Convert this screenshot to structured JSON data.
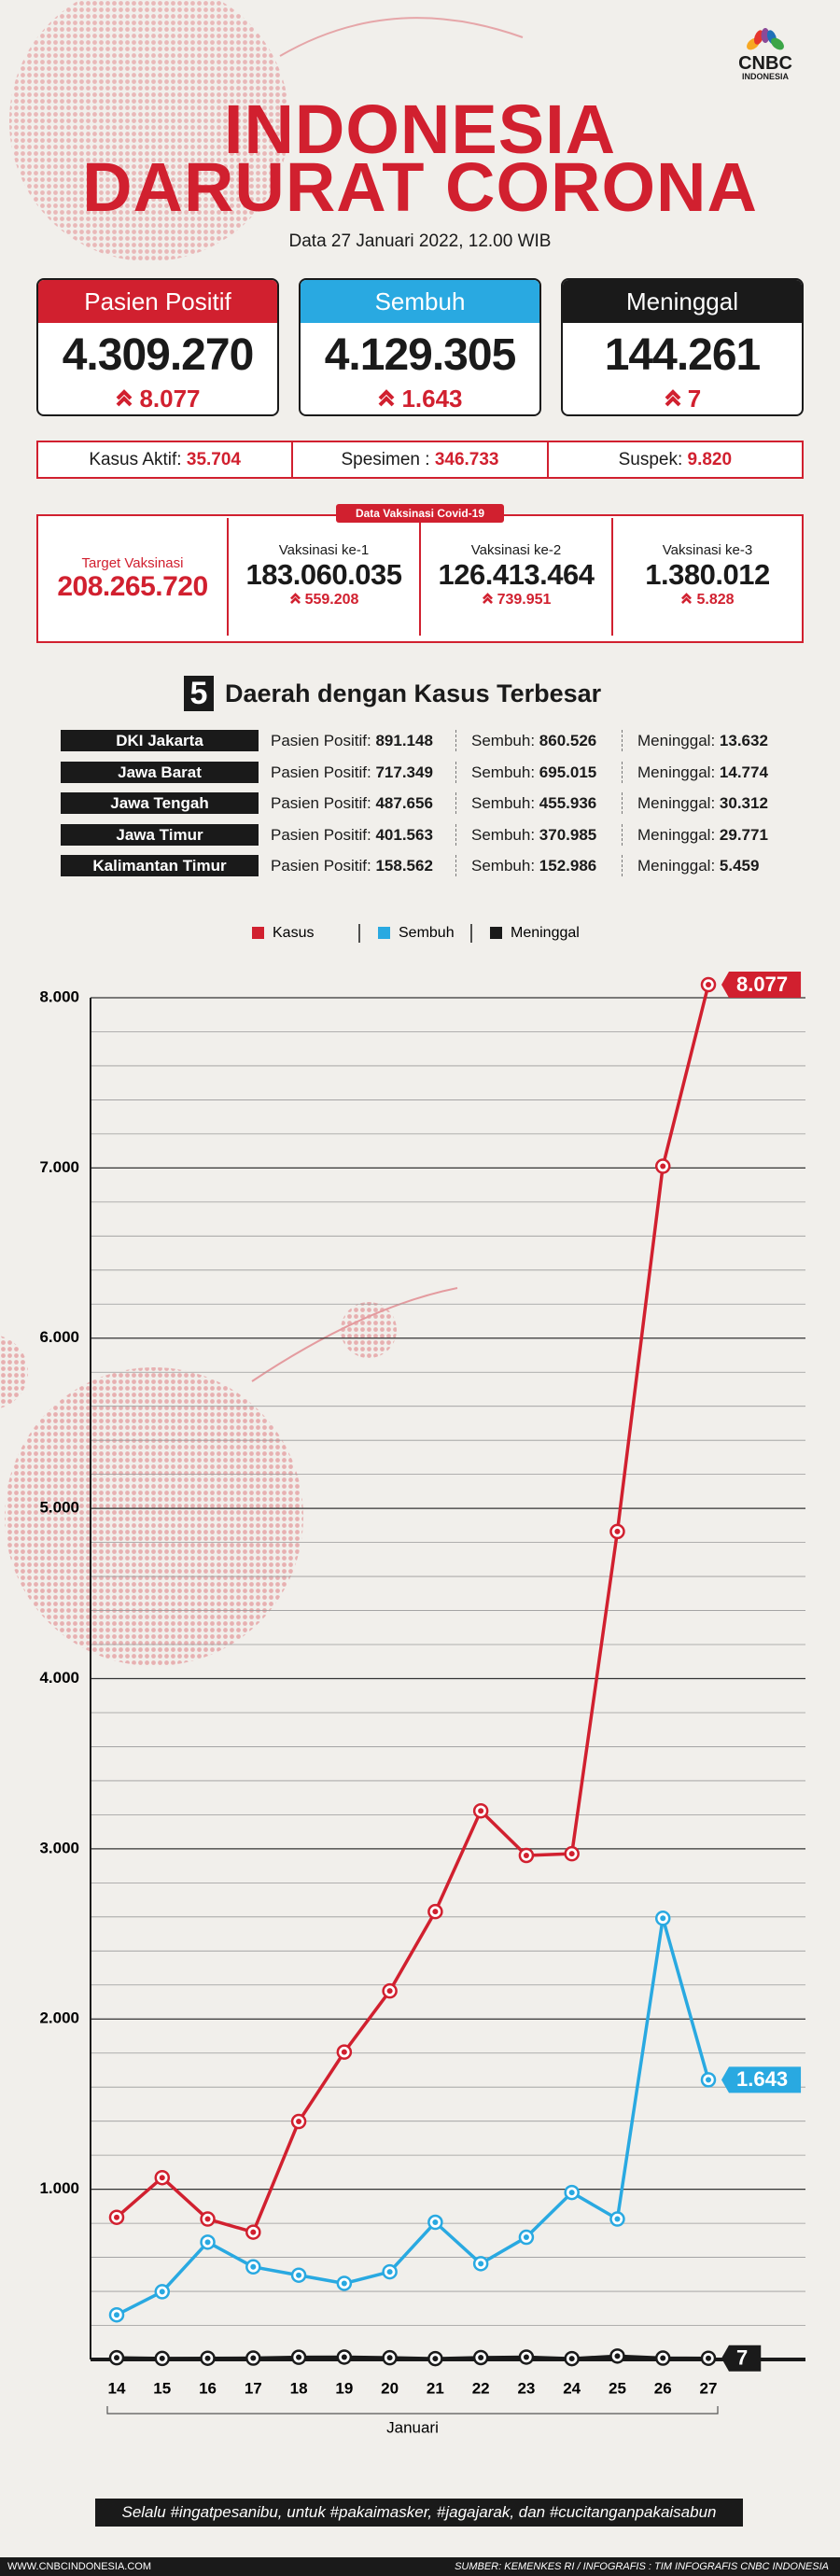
{
  "header": {
    "logo": "CNBC",
    "logo_sub": "INDONESIA",
    "title_line1": "INDONESIA",
    "title_line2": "DARURAT CORONA",
    "subtitle": "Data 27 Januari 2022, 12.00 WIB"
  },
  "summary": [
    {
      "label": "Pasien Positif",
      "value": "4.309.270",
      "delta": "8.077",
      "color": "#d1202f"
    },
    {
      "label": "Sembuh",
      "value": "4.129.305",
      "delta": "1.643",
      "color": "#29a9e1"
    },
    {
      "label": "Meninggal",
      "value": "144.261",
      "delta": "7",
      "color": "#1a1a1a"
    }
  ],
  "stats": [
    {
      "label": "Kasus Aktif:",
      "value": "35.704"
    },
    {
      "label": "Spesimen :",
      "value": "346.733"
    },
    {
      "label": "Suspek:",
      "value": "9.820"
    }
  ],
  "vaccination": {
    "tag": "Data Vaksinasi Covid-19",
    "target_label": "Target Vaksinasi",
    "target_value": "208.265.720",
    "doses": [
      {
        "label": "Vaksinasi ke-1",
        "value": "183.060.035",
        "delta": "559.208"
      },
      {
        "label": "Vaksinasi ke-2",
        "value": "126.413.464",
        "delta": "739.951"
      },
      {
        "label": "Vaksinasi ke-3",
        "value": "1.380.012",
        "delta": "5.828"
      }
    ]
  },
  "regions": {
    "rank": "5",
    "title": "Daerah dengan Kasus Terbesar",
    "column_labels": [
      "Pasien Positif:",
      "Sembuh:",
      "Meninggal:"
    ],
    "rows": [
      [
        "DKI Jakarta",
        "891.148",
        "860.526",
        "13.632"
      ],
      [
        "Jawa Barat",
        "717.349",
        "695.015",
        "14.774"
      ],
      [
        "Jawa Tengah",
        "487.656",
        "455.936",
        "30.312"
      ],
      [
        "Jawa Timur",
        "401.563",
        "370.985",
        "29.771"
      ],
      [
        "Kalimantan Timur",
        "158.562",
        "152.986",
        "5.459"
      ]
    ]
  },
  "chart_data": {
    "type": "line",
    "categories": [
      "14",
      "15",
      "16",
      "17",
      "18",
      "19",
      "20",
      "21",
      "22",
      "23",
      "24",
      "25",
      "26",
      "27"
    ],
    "xlabel": "Januari",
    "ylim": [
      0,
      8000
    ],
    "yticks": [
      {
        "value": 1000,
        "label": "1.000"
      },
      {
        "value": 2000,
        "label": "2.000"
      },
      {
        "value": 3000,
        "label": "3.000"
      },
      {
        "value": 4000,
        "label": "4.000"
      },
      {
        "value": 5000,
        "label": "5.000"
      },
      {
        "value": 6000,
        "label": "6.000"
      },
      {
        "value": 7000,
        "label": "7.000"
      },
      {
        "value": 8000,
        "label": "8.000"
      }
    ],
    "grid": true,
    "legend": "top",
    "series": [
      {
        "name": "Kasus",
        "color": "#d1202f",
        "values": [
          835,
          1068,
          825,
          748,
          1398,
          1806,
          2165,
          2631,
          3223,
          2961,
          2971,
          4864,
          7010,
          8077
        ],
        "value_labels": [
          null,
          null,
          null,
          null,
          null,
          null,
          null,
          null,
          null,
          null,
          null,
          null,
          null,
          "8.077"
        ]
      },
      {
        "name": "Sembuh",
        "color": "#29a9e1",
        "values": [
          262,
          398,
          689,
          544,
          495,
          447,
          515,
          806,
          563,
          718,
          981,
          825,
          2592,
          1643
        ],
        "value_labels": [
          null,
          null,
          null,
          null,
          null,
          null,
          null,
          null,
          null,
          null,
          null,
          null,
          null,
          "1.643"
        ]
      },
      {
        "name": "Meninggal",
        "color": "#1a1a1a",
        "values": [
          10,
          6,
          7,
          8,
          13,
          14,
          10,
          5,
          11,
          14,
          5,
          20,
          8,
          7
        ],
        "value_labels": [
          null,
          null,
          null,
          null,
          null,
          null,
          null,
          null,
          null,
          null,
          null,
          null,
          null,
          "7"
        ]
      }
    ]
  },
  "footer": {
    "message": "Selalu #ingatpesanibu, untuk #pakaimasker, #jagajarak, dan #cucitanganpakaisabun",
    "website": "WWW.CNBCINDONESIA.COM",
    "source": "SUMBER: KEMENKES RI / INFOGRAFIS : TIM INFOGRAFIS CNBC INDONESIA"
  }
}
